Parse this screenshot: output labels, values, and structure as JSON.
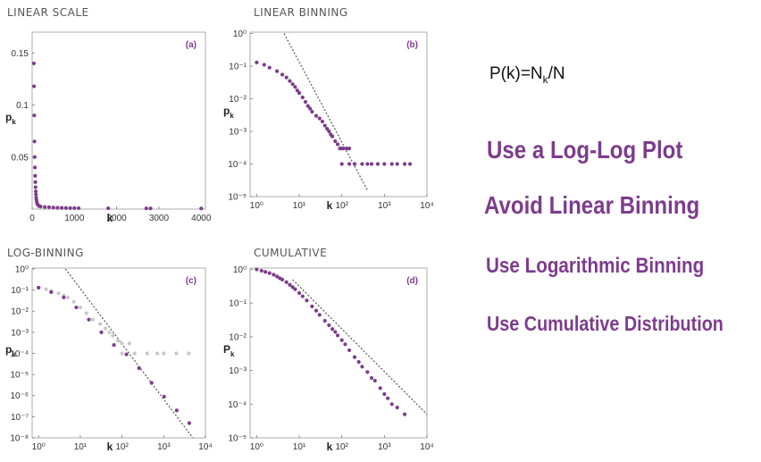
{
  "accent_color": "#7d3c8c",
  "grey_color": "#c8c8c8",
  "formula": {
    "lhs": "P(k)=N",
    "sub": "k",
    "rhs": "/N"
  },
  "tips": [
    "Use a Log-Log Plot",
    "Avoid Linear Binning",
    "Use Logarithmic Binning",
    "Use Cumulative Distribution"
  ],
  "chart_data": [
    {
      "id": "a",
      "type": "scatter",
      "title": "LINEAR SCALE",
      "tag": "(a)",
      "xlabel": "k",
      "ylabel": "p",
      "ylabel_sub": "k",
      "xscale": "linear",
      "yscale": "linear",
      "xlim": [
        0,
        4100
      ],
      "ylim": [
        0,
        0.17
      ],
      "xticks": [
        0,
        1000,
        2000,
        3000,
        4000
      ],
      "xtick_labels": [
        "0",
        "1000",
        "2000",
        "3000",
        "4000"
      ],
      "yticks": [
        0.05,
        0.1,
        0.15
      ],
      "ytick_labels": [
        "0.05",
        "0.1",
        "0.15"
      ],
      "series": [
        {
          "color": "#7d3c8c",
          "points": [
            [
              40,
              0.14
            ],
            [
              45,
              0.118
            ],
            [
              50,
              0.09
            ],
            [
              55,
              0.065
            ],
            [
              60,
              0.05
            ],
            [
              65,
              0.04
            ],
            [
              70,
              0.032
            ],
            [
              75,
              0.026
            ],
            [
              80,
              0.021
            ],
            [
              85,
              0.017
            ],
            [
              90,
              0.014
            ],
            [
              95,
              0.011
            ],
            [
              100,
              0.009
            ],
            [
              110,
              0.007
            ],
            [
              120,
              0.005
            ],
            [
              140,
              0.004
            ],
            [
              160,
              0.003
            ],
            [
              200,
              0.0025
            ],
            [
              300,
              0.002
            ],
            [
              400,
              0.0018
            ],
            [
              500,
              0.0015
            ],
            [
              600,
              0.0013
            ],
            [
              700,
              0.0012
            ],
            [
              800,
              0.0011
            ],
            [
              900,
              0.001
            ],
            [
              1000,
              0.001
            ],
            [
              1100,
              0.0009
            ],
            [
              1800,
              0.0008
            ],
            [
              2700,
              0.0007
            ],
            [
              2800,
              0.0007
            ],
            [
              4000,
              0.0006
            ]
          ]
        }
      ]
    },
    {
      "id": "b",
      "type": "scatter",
      "title": "LINEAR BINNING",
      "tag": "(b)",
      "xlabel": "k",
      "ylabel": "p",
      "ylabel_sub": "k",
      "xscale": "log",
      "yscale": "log",
      "xlim": [
        0.7,
        10000
      ],
      "ylim": [
        1e-05,
        1.1
      ],
      "xticks": [
        1,
        10,
        100,
        1000,
        10000
      ],
      "xtick_labels": [
        "10⁰",
        "10¹",
        "10²",
        "10³",
        "10⁴"
      ],
      "yticks": [
        1e-05,
        0.0001,
        0.001,
        0.01,
        0.1,
        1
      ],
      "ytick_labels": [
        "10⁻⁵",
        "10⁻⁴",
        "10⁻³",
        "10⁻²",
        "10⁻¹",
        "10⁰"
      ],
      "fit_line": {
        "x": [
          4.4,
          400
        ],
        "y": [
          1,
          1.56e-05
        ]
      },
      "series": [
        {
          "color": "#7d3c8c",
          "points": [
            [
              1,
              0.13
            ],
            [
              1.5,
              0.11
            ],
            [
              2,
              0.09
            ],
            [
              3,
              0.07
            ],
            [
              4,
              0.055
            ],
            [
              5,
              0.045
            ],
            [
              6,
              0.035
            ],
            [
              7,
              0.028
            ],
            [
              8,
              0.023
            ],
            [
              9,
              0.018
            ],
            [
              10,
              0.015
            ],
            [
              12,
              0.011
            ],
            [
              14,
              0.008
            ],
            [
              16,
              0.006
            ],
            [
              18,
              0.005
            ],
            [
              20,
              0.004
            ],
            [
              25,
              0.003
            ],
            [
              30,
              0.0025
            ],
            [
              35,
              0.002
            ],
            [
              40,
              0.0015
            ],
            [
              45,
              0.0012
            ],
            [
              50,
              0.001
            ],
            [
              55,
              0.0008
            ],
            [
              60,
              0.0007
            ],
            [
              70,
              0.0005
            ],
            [
              80,
              0.0004
            ],
            [
              90,
              0.0003
            ],
            [
              100,
              0.0003
            ],
            [
              110,
              0.0003
            ],
            [
              130,
              0.0003
            ],
            [
              150,
              0.0003
            ],
            [
              100,
              0.0001
            ],
            [
              150,
              0.0001
            ],
            [
              200,
              0.0001
            ],
            [
              300,
              0.0001
            ],
            [
              400,
              0.0001
            ],
            [
              500,
              0.0001
            ],
            [
              700,
              0.0001
            ],
            [
              1000,
              0.0001
            ],
            [
              1500,
              0.0001
            ],
            [
              2000,
              0.0001
            ],
            [
              3000,
              0.0001
            ],
            [
              4000,
              0.0001
            ]
          ]
        }
      ]
    },
    {
      "id": "c",
      "type": "scatter",
      "title": "LOG-BINNING",
      "tag": "(c)",
      "xlabel": "k",
      "ylabel": "p",
      "ylabel_sub": "k",
      "xscale": "log",
      "yscale": "log",
      "xlim": [
        0.7,
        10000
      ],
      "ylim": [
        1e-08,
        1.1
      ],
      "xticks": [
        1,
        10,
        100,
        1000,
        10000
      ],
      "xtick_labels": [
        "10⁰",
        "10¹",
        "10²",
        "10³",
        "10⁴"
      ],
      "yticks": [
        1e-08,
        1e-07,
        1e-06,
        1e-05,
        0.0001,
        0.001,
        0.01,
        0.1,
        1
      ],
      "ytick_labels": [
        "10⁻⁸",
        "10⁻⁷",
        "10⁻⁶",
        "10⁻⁵",
        "10⁻⁴",
        "10⁻³",
        "10⁻²",
        "10⁻¹",
        "10⁰"
      ],
      "fit_line": {
        "x": [
          4.4,
          5000
        ],
        "y": [
          1,
          1e-08
        ]
      },
      "series": [
        {
          "color": "#c8c8c8",
          "points": [
            [
              1,
              0.13
            ],
            [
              1.5,
              0.11
            ],
            [
              2,
              0.09
            ],
            [
              3,
              0.07
            ],
            [
              4,
              0.055
            ],
            [
              5,
              0.045
            ],
            [
              7,
              0.028
            ],
            [
              10,
              0.015
            ],
            [
              14,
              0.008
            ],
            [
              20,
              0.004
            ],
            [
              30,
              0.0025
            ],
            [
              40,
              0.0015
            ],
            [
              50,
              0.001
            ],
            [
              60,
              0.0007
            ],
            [
              80,
              0.0004
            ],
            [
              100,
              0.0003
            ],
            [
              150,
              0.0003
            ],
            [
              100,
              0.0001
            ],
            [
              200,
              0.0001
            ],
            [
              400,
              0.0001
            ],
            [
              700,
              0.0001
            ],
            [
              1000,
              0.0001
            ],
            [
              2000,
              0.0001
            ],
            [
              4000,
              0.0001
            ]
          ]
        },
        {
          "color": "#7d3c8c",
          "points": [
            [
              1,
              0.13
            ],
            [
              2,
              0.08
            ],
            [
              4,
              0.045
            ],
            [
              8,
              0.015
            ],
            [
              16,
              0.004
            ],
            [
              32,
              0.001
            ],
            [
              64,
              0.00025
            ],
            [
              128,
              9e-05
            ],
            [
              256,
              2e-05
            ],
            [
              512,
              4e-06
            ],
            [
              1024,
              9e-07
            ],
            [
              2048,
              2e-07
            ],
            [
              4096,
              5e-08
            ]
          ]
        }
      ]
    },
    {
      "id": "d",
      "type": "scatter",
      "title": "CUMULATIVE",
      "tag": "(d)",
      "xlabel": "k",
      "ylabel": "P",
      "ylabel_sub": "k",
      "xscale": "log",
      "yscale": "log",
      "xlim": [
        0.7,
        10000
      ],
      "ylim": [
        1e-05,
        1.1
      ],
      "xticks": [
        1,
        10,
        100,
        1000,
        10000
      ],
      "xtick_labels": [
        "10⁰",
        "10¹",
        "10²",
        "10³",
        "10⁴"
      ],
      "yticks": [
        1e-05,
        0.0001,
        0.001,
        0.01,
        0.1,
        1
      ],
      "ytick_labels": [
        "10⁻⁵",
        "10⁻⁴",
        "10⁻³",
        "10⁻²",
        "10⁻¹",
        "10⁰"
      ],
      "fit_line": {
        "x": [
          7,
          10000
        ],
        "y": [
          0.5,
          5e-05
        ]
      },
      "series": [
        {
          "color": "#7d3c8c",
          "points": [
            [
              1,
              1
            ],
            [
              1.3,
              0.92
            ],
            [
              1.6,
              0.85
            ],
            [
              2,
              0.78
            ],
            [
              2.5,
              0.7
            ],
            [
              3,
              0.62
            ],
            [
              3.5,
              0.55
            ],
            [
              4,
              0.5
            ],
            [
              5,
              0.42
            ],
            [
              6,
              0.35
            ],
            [
              7,
              0.3
            ],
            [
              8,
              0.26
            ],
            [
              10,
              0.2
            ],
            [
              12,
              0.16
            ],
            [
              15,
              0.12
            ],
            [
              20,
              0.08
            ],
            [
              25,
              0.06
            ],
            [
              30,
              0.045
            ],
            [
              40,
              0.03
            ],
            [
              50,
              0.022
            ],
            [
              60,
              0.017
            ],
            [
              70,
              0.014
            ],
            [
              80,
              0.011
            ],
            [
              100,
              0.008
            ],
            [
              120,
              0.006
            ],
            [
              150,
              0.004
            ],
            [
              200,
              0.0025
            ],
            [
              250,
              0.0018
            ],
            [
              300,
              0.0013
            ],
            [
              400,
              0.0009
            ],
            [
              500,
              0.0006
            ],
            [
              600,
              0.0005
            ],
            [
              800,
              0.0003
            ],
            [
              1000,
              0.0002
            ],
            [
              1200,
              0.00015
            ],
            [
              1500,
              0.0001
            ],
            [
              2000,
              8e-05
            ],
            [
              3000,
              5e-05
            ]
          ]
        }
      ]
    }
  ]
}
